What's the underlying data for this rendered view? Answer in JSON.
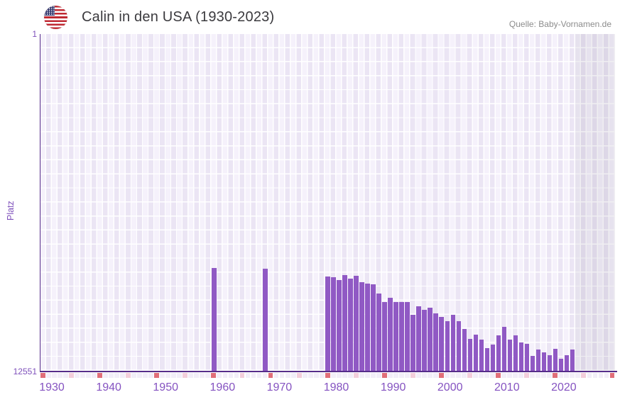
{
  "header": {
    "title": "Calin in den USA (1930-2023)",
    "flag_icon": "us-flag-icon",
    "source": "Quelle: Baby-Vornamen.de"
  },
  "chart_data": {
    "type": "bar",
    "title": "Calin in den USA (1930-2023)",
    "xlabel": "",
    "ylabel": "Platz",
    "y_axis": {
      "top_label": "1",
      "bottom_label": "12551",
      "min": 1,
      "max": 12551,
      "inverted": true,
      "note": "rank 1 at top, bars grow up from bottom; taller bar = better rank"
    },
    "x_axis": {
      "first_column_year": 1928,
      "last_column_year": 2028,
      "tick_years": [
        1930,
        1940,
        1950,
        1960,
        1970,
        1980,
        1990,
        2000,
        2010,
        2020
      ]
    },
    "series": [
      {
        "name": "Platz",
        "points": [
          [
            1958,
            8720
          ],
          [
            1967,
            8750
          ],
          [
            1978,
            9040
          ],
          [
            1979,
            9060
          ],
          [
            1980,
            9170
          ],
          [
            1981,
            8980
          ],
          [
            1982,
            9120
          ],
          [
            1983,
            9010
          ],
          [
            1984,
            9250
          ],
          [
            1985,
            9300
          ],
          [
            1986,
            9330
          ],
          [
            1987,
            9670
          ],
          [
            1988,
            9990
          ],
          [
            1989,
            9830
          ],
          [
            1990,
            9990
          ],
          [
            1991,
            9990
          ],
          [
            1992,
            9990
          ],
          [
            1993,
            10460
          ],
          [
            1994,
            10150
          ],
          [
            1995,
            10280
          ],
          [
            1996,
            10200
          ],
          [
            1997,
            10410
          ],
          [
            1998,
            10540
          ],
          [
            1999,
            10700
          ],
          [
            2000,
            10460
          ],
          [
            2001,
            10700
          ],
          [
            2002,
            10990
          ],
          [
            2003,
            11360
          ],
          [
            2004,
            11200
          ],
          [
            2005,
            11390
          ],
          [
            2006,
            11700
          ],
          [
            2007,
            11570
          ],
          [
            2008,
            11230
          ],
          [
            2009,
            10910
          ],
          [
            2010,
            11390
          ],
          [
            2011,
            11230
          ],
          [
            2012,
            11490
          ],
          [
            2013,
            11550
          ],
          [
            2014,
            11990
          ],
          [
            2015,
            11760
          ],
          [
            2016,
            11860
          ],
          [
            2017,
            11970
          ],
          [
            2018,
            11730
          ],
          [
            2019,
            12100
          ],
          [
            2020,
            11970
          ],
          [
            2021,
            11760
          ]
        ]
      }
    ],
    "no_data_band": {
      "from_year": 2022,
      "to_year": 2028
    },
    "bottom_strip": {
      "red_years": [
        1928,
        1938,
        1948,
        1958,
        1968,
        1978,
        1988,
        1998,
        2008,
        2018,
        2028
      ],
      "pink_years": [
        1933,
        1943,
        1953,
        1963,
        1973,
        1983,
        1993,
        2003,
        2013,
        2023
      ]
    },
    "grid": {
      "visible": true,
      "h_rows": 24,
      "line_color": "#ffffff"
    },
    "legend": {
      "visible": false
    },
    "colors": {
      "bar": "#9059c4",
      "axis_line": "#562d8a",
      "tick_label": "#8553c1",
      "y_label": "#7e50bb",
      "cell_light": "#f5f1fb",
      "cell_dark": "#ebe5f4",
      "grid_line": "#ffffff",
      "band_overlay": "rgba(62,55,90,0.08)",
      "strip_base": "#f2eef8",
      "strip_red": "#e06e79",
      "strip_pink": "#f3cedb",
      "title_text": "#3b3a3e",
      "source_text": "#8c8c8c"
    }
  }
}
